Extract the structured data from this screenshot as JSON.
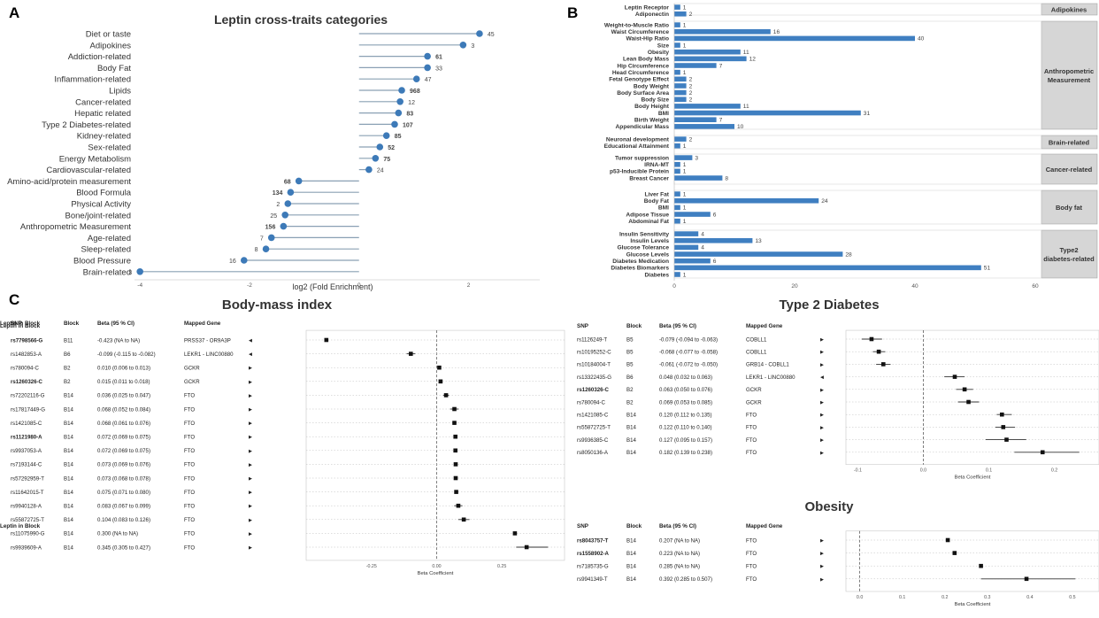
{
  "panels": {
    "a": "A",
    "b": "B",
    "c": "C"
  },
  "chart_data": [
    {
      "panel": "A",
      "type": "lollipop",
      "title": "Leptin cross-traits categories",
      "xlabel": "log2 (Fold Enrichment)",
      "xlim": [
        -4.1,
        3.3
      ],
      "xticks": [
        -4,
        -2,
        0,
        2
      ],
      "categories": [
        "Diet or taste",
        "Adipokines",
        "Addiction-related",
        "Body Fat",
        "Inflammation-related",
        "Lipids",
        "Cancer-related",
        "Hepatic related",
        "Type 2 Diabetes-related",
        "Kidney-related",
        "Sex-related",
        "Energy Metabolism",
        "Cardiovascular-related",
        "Amino-acid/protein measurement",
        "Blood Formula",
        "Physical Activity",
        "Bone/joint-related",
        "Anthropometric Measurement",
        "Age-related",
        "Sleep-related",
        "Blood Pressure",
        "Brain-related"
      ],
      "values": [
        2.2,
        1.9,
        1.25,
        1.25,
        1.05,
        0.78,
        0.75,
        0.72,
        0.65,
        0.5,
        0.38,
        0.3,
        0.18,
        -1.1,
        -1.25,
        -1.3,
        -1.35,
        -1.38,
        -1.6,
        -1.7,
        -2.1,
        -4.0
      ],
      "counts": [
        "45",
        "3",
        "61",
        "33",
        "47",
        "968",
        "12",
        "83",
        "107",
        "85",
        "52",
        "75",
        "24",
        "68",
        "134",
        "2",
        "25",
        "156",
        "7",
        "8",
        "16",
        "3"
      ],
      "bold_counts": [
        false,
        false,
        true,
        false,
        false,
        true,
        false,
        true,
        true,
        true,
        true,
        true,
        false,
        true,
        true,
        false,
        false,
        true,
        false,
        false,
        false,
        false
      ]
    },
    {
      "panel": "B",
      "type": "bar",
      "xlim": [
        0,
        60
      ],
      "xticks": [
        0,
        20,
        40,
        60
      ],
      "groups": [
        {
          "name": "Adipokines",
          "items": [
            [
              "Leptin Receptor",
              1
            ],
            [
              "Adiponectin",
              2
            ]
          ]
        },
        {
          "name": "Anthropometric Measurement",
          "items": [
            [
              "Weight-to-Muscle Ratio",
              1
            ],
            [
              "Waist Circumference",
              16
            ],
            [
              "Waist-Hip Ratio",
              40
            ],
            [
              "Size",
              1
            ],
            [
              "Obesity",
              11
            ],
            [
              "Lean Body Mass",
              12
            ],
            [
              "Hip Circumference",
              7
            ],
            [
              "Head Circumference",
              1
            ],
            [
              "Fetal Genotype Effect",
              2
            ],
            [
              "Body Weight",
              2
            ],
            [
              "Body Surface Area",
              2
            ],
            [
              "Body Size",
              2
            ],
            [
              "Body Height",
              11
            ],
            [
              "BMI",
              31
            ],
            [
              "Birth Weight",
              7
            ],
            [
              "Appendicular Mass",
              10
            ]
          ]
        },
        {
          "name": "Brain-related",
          "items": [
            [
              "Neuronal development",
              2
            ],
            [
              "Educational Attainment",
              1
            ]
          ]
        },
        {
          "name": "Cancer-related",
          "items": [
            [
              "Tumor suppression",
              3
            ],
            [
              "lRNA-MT",
              1
            ],
            [
              "p53-Inducible Protein",
              1
            ],
            [
              "Breast Cancer",
              8
            ]
          ]
        },
        {
          "name": "Body fat",
          "items": [
            [
              "Liver Fat",
              1
            ],
            [
              "Body Fat",
              24
            ],
            [
              "BMI",
              1
            ],
            [
              "Adipose Tissue",
              6
            ],
            [
              "Abdominal Fat",
              1
            ]
          ]
        },
        {
          "name": "Type2 diabetes-related",
          "items": [
            [
              "Insulin Sensitivity",
              4
            ],
            [
              "Insulin Levels",
              13
            ],
            [
              "Glucose Tolerance",
              4
            ],
            [
              "Glucose Levels",
              28
            ],
            [
              "Diabetes Medication",
              6
            ],
            [
              "Diabetes Biomarkers",
              51
            ],
            [
              "Diabetes",
              1
            ]
          ]
        }
      ]
    },
    {
      "panel": "C",
      "type": "forest",
      "title": "Body-mass index",
      "xlabel": "Beta Coefficient",
      "xlim": [
        -0.48,
        0.47
      ],
      "xticks": [
        -0.25,
        0,
        0.25
      ],
      "tick_labels": [
        "-0.25",
        "0.00",
        "0.25"
      ],
      "headers": [
        "SNP",
        "Block",
        "Beta (95 % CI)",
        "Mapped Gene",
        "Leptin in Block"
      ],
      "rows": [
        {
          "snp": "rs7798566-G",
          "bold": true,
          "block": "B11",
          "ci": "-0.423 (NA to NA)",
          "gene": "PRSS37 - OR9A3P",
          "dir": "◄",
          "beta": -0.423,
          "lo": null,
          "hi": null
        },
        {
          "snp": "rs1482853-A",
          "bold": false,
          "block": "B6",
          "ci": "-0.099 (-0.115 to -0.082)",
          "gene": "LEKR1 - LINC00880",
          "dir": "◄",
          "beta": -0.099,
          "lo": -0.115,
          "hi": -0.082
        },
        {
          "snp": "rs780094-C",
          "bold": false,
          "block": "B2",
          "ci": "0.010 (0.006 to 0.013)",
          "gene": "GCKR",
          "dir": "►",
          "beta": 0.01,
          "lo": 0.006,
          "hi": 0.013
        },
        {
          "snp": "rs1260326-C",
          "bold": true,
          "block": "B2",
          "ci": "0.015 (0.011 to 0.018)",
          "gene": "GCKR",
          "dir": "►",
          "beta": 0.015,
          "lo": 0.011,
          "hi": 0.018
        },
        {
          "snp": "rs72202116-G",
          "bold": false,
          "block": "B14",
          "ci": "0.036 (0.025 to 0.047)",
          "gene": "FTO",
          "dir": "►",
          "beta": 0.036,
          "lo": 0.025,
          "hi": 0.047
        },
        {
          "snp": "rs17817449-G",
          "bold": false,
          "block": "B14",
          "ci": "0.068 (0.052 to 0.084)",
          "gene": "FTO",
          "dir": "►",
          "beta": 0.068,
          "lo": 0.052,
          "hi": 0.084
        },
        {
          "snp": "rs1421085-C",
          "bold": false,
          "block": "B14",
          "ci": "0.068 (0.061 to 0.076)",
          "gene": "FTO",
          "dir": "►",
          "beta": 0.068,
          "lo": 0.061,
          "hi": 0.076
        },
        {
          "snp": "rs1121980-A",
          "bold": true,
          "block": "B14",
          "ci": "0.072 (0.069 to 0.075)",
          "gene": "FTO",
          "dir": "►",
          "beta": 0.072,
          "lo": 0.069,
          "hi": 0.075
        },
        {
          "snp": "rs9937053-A",
          "bold": false,
          "block": "B14",
          "ci": "0.072 (0.069 to 0.075)",
          "gene": "FTO",
          "dir": "►",
          "beta": 0.072,
          "lo": 0.069,
          "hi": 0.075
        },
        {
          "snp": "rs7193144-C",
          "bold": false,
          "block": "B14",
          "ci": "0.073 (0.069 to 0.076)",
          "gene": "FTO",
          "dir": "►",
          "beta": 0.073,
          "lo": 0.069,
          "hi": 0.076
        },
        {
          "snp": "rs57292959-T",
          "bold": false,
          "block": "B14",
          "ci": "0.073 (0.068 to 0.078)",
          "gene": "FTO",
          "dir": "►",
          "beta": 0.073,
          "lo": 0.068,
          "hi": 0.078
        },
        {
          "snp": "rs11642015-T",
          "bold": false,
          "block": "B14",
          "ci": "0.075 (0.071 to 0.080)",
          "gene": "FTO",
          "dir": "►",
          "beta": 0.075,
          "lo": 0.071,
          "hi": 0.08
        },
        {
          "snp": "rs9940128-A",
          "bold": false,
          "block": "B14",
          "ci": "0.083 (0.067 to 0.099)",
          "gene": "FTO",
          "dir": "►",
          "beta": 0.083,
          "lo": 0.067,
          "hi": 0.099
        },
        {
          "snp": "rs55872725-T",
          "bold": false,
          "block": "B14",
          "ci": "0.104 (0.083 to 0.126)",
          "gene": "FTO",
          "dir": "►",
          "beta": 0.104,
          "lo": 0.083,
          "hi": 0.126
        },
        {
          "snp": "rs11075990-G",
          "bold": false,
          "block": "B14",
          "ci": "0.300 (NA to NA)",
          "gene": "FTO",
          "dir": "►",
          "beta": 0.3,
          "lo": null,
          "hi": null
        },
        {
          "snp": "rs9939609-A",
          "bold": false,
          "block": "B14",
          "ci": "0.345 (0.305 to 0.427)",
          "gene": "FTO",
          "dir": "►",
          "beta": 0.345,
          "lo": 0.305,
          "hi": 0.427
        }
      ]
    },
    {
      "panel": "C",
      "type": "forest",
      "title": "Type 2 Diabetes",
      "xlabel": "Beta Coefficient",
      "xlim": [
        -0.11,
        0.26
      ],
      "xticks": [
        -0.1,
        0,
        0.1,
        0.2
      ],
      "tick_labels": [
        "-0.1",
        "0.0",
        "0.1",
        "0.2"
      ],
      "headers": [
        "SNP",
        "Block",
        "Beta (95 % CI)",
        "Mapped Gene",
        "Leptin in Block"
      ],
      "rows": [
        {
          "snp": "rs1126249-T",
          "bold": false,
          "block": "B5",
          "ci": "-0.079 (-0.094 to -0.063)",
          "gene": "COBLL1",
          "dir": "►",
          "beta": -0.079,
          "lo": -0.094,
          "hi": -0.063
        },
        {
          "snp": "rs10195252-C",
          "bold": false,
          "block": "B5",
          "ci": "-0.068 (-0.077 to -0.058)",
          "gene": "COBLL1",
          "dir": "►",
          "beta": -0.068,
          "lo": -0.077,
          "hi": -0.058
        },
        {
          "snp": "rs10184004-T",
          "bold": false,
          "block": "B5",
          "ci": "-0.061 (-0.072 to -0.050)",
          "gene": "GRB14 - COBLL1",
          "dir": "►",
          "beta": -0.061,
          "lo": -0.072,
          "hi": -0.05
        },
        {
          "snp": "rs13322435-G",
          "bold": false,
          "block": "B6",
          "ci": "0.048 (0.032 to 0.063)",
          "gene": "LEKR1 - LINC00880",
          "dir": "◄",
          "beta": 0.048,
          "lo": 0.032,
          "hi": 0.063
        },
        {
          "snp": "rs1260326-C",
          "bold": true,
          "block": "B2",
          "ci": "0.063 (0.050 to 0.076)",
          "gene": "GCKR",
          "dir": "►",
          "beta": 0.063,
          "lo": 0.05,
          "hi": 0.076
        },
        {
          "snp": "rs780094-C",
          "bold": false,
          "block": "B2",
          "ci": "0.069 (0.053 to 0.085)",
          "gene": "GCKR",
          "dir": "►",
          "beta": 0.069,
          "lo": 0.053,
          "hi": 0.085
        },
        {
          "snp": "rs1421085-C",
          "bold": false,
          "block": "B14",
          "ci": "0.120 (0.112 to 0.135)",
          "gene": "FTO",
          "dir": "►",
          "beta": 0.12,
          "lo": 0.112,
          "hi": 0.135
        },
        {
          "snp": "rs55872725-T",
          "bold": false,
          "block": "B14",
          "ci": "0.122 (0.110 to 0.140)",
          "gene": "FTO",
          "dir": "►",
          "beta": 0.122,
          "lo": 0.11,
          "hi": 0.14
        },
        {
          "snp": "rs9936385-C",
          "bold": false,
          "block": "B14",
          "ci": "0.127 (0.095 to 0.157)",
          "gene": "FTO",
          "dir": "►",
          "beta": 0.127,
          "lo": 0.095,
          "hi": 0.157
        },
        {
          "snp": "rs8050136-A",
          "bold": false,
          "block": "B14",
          "ci": "0.182 (0.139 to 0.238)",
          "gene": "FTO",
          "dir": "►",
          "beta": 0.182,
          "lo": 0.139,
          "hi": 0.238
        }
      ]
    },
    {
      "panel": "C",
      "type": "forest",
      "title": "Obesity",
      "xlabel": "Beta Coefficient",
      "xlim": [
        -0.02,
        0.55
      ],
      "xticks": [
        0,
        0.1,
        0.2,
        0.3,
        0.4,
        0.5
      ],
      "tick_labels": [
        "0.0",
        "0.1",
        "0.2",
        "0.3",
        "0.4",
        "0.5"
      ],
      "headers": [
        "SNP",
        "Block",
        "Beta (95 % CI)",
        "Mapped Gene",
        "Leptin in Block"
      ],
      "rows": [
        {
          "snp": "rs8043757-T",
          "bold": true,
          "block": "B14",
          "ci": "0.207 (NA to NA)",
          "gene": "FTO",
          "dir": "►",
          "beta": 0.207,
          "lo": null,
          "hi": null
        },
        {
          "snp": "rs1558902-A",
          "bold": true,
          "block": "B14",
          "ci": "0.223 (NA to NA)",
          "gene": "FTO",
          "dir": "►",
          "beta": 0.223,
          "lo": null,
          "hi": null
        },
        {
          "snp": "rs7185735-G",
          "bold": false,
          "block": "B14",
          "ci": "0.285 (NA to NA)",
          "gene": "FTO",
          "dir": "►",
          "beta": 0.285,
          "lo": null,
          "hi": null
        },
        {
          "snp": "rs9941349-T",
          "bold": false,
          "block": "B14",
          "ci": "0.392 (0.285 to 0.507)",
          "gene": "FTO",
          "dir": "►",
          "beta": 0.392,
          "lo": 0.285,
          "hi": 0.507
        }
      ]
    }
  ],
  "colors": {
    "dot": "#3d7ab8",
    "bar": "#3f7fc1",
    "stem": "#8aa0b4",
    "stripe": "#d6d6d6",
    "text": "#222222"
  }
}
